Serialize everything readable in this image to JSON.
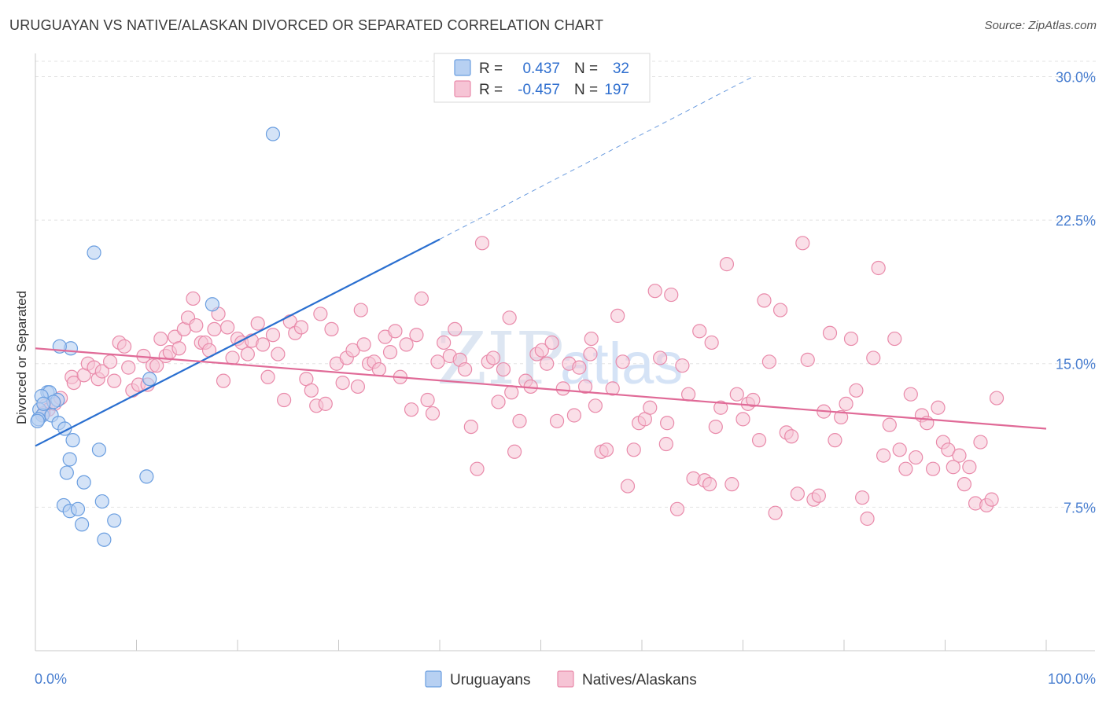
{
  "header": {
    "title": "URUGUAYAN VS NATIVE/ALASKAN DIVORCED OR SEPARATED CORRELATION CHART",
    "source": "Source: ZipAtlas.com"
  },
  "watermark": {
    "zip": "ZIP",
    "atlas": "atlas"
  },
  "colors": {
    "blue": "#6a9ee0",
    "blue_fill": "#b7d0f2",
    "blue_line": "#2a6fd0",
    "pink": "#e98aaa",
    "pink_fill": "#f6c4d5",
    "pink_line": "#e06a97",
    "axis_text": "#4a7fd0",
    "grid": "#e3e3e3"
  },
  "legend": {
    "rows": [
      {
        "r_label": "R =",
        "r_value": "0.437",
        "n_label": "N =",
        "n_value": "32"
      },
      {
        "r_label": "R =",
        "r_value": "-0.457",
        "n_label": "N =",
        "n_value": "197"
      }
    ]
  },
  "bottom_legend": [
    "Uruguayans",
    "Natives/Alaskans"
  ],
  "chart_data": {
    "type": "scatter",
    "ylabel": "Divorced or Separated",
    "xlabel": "",
    "xlim": [
      0,
      100
    ],
    "ylim": [
      0,
      30.8
    ],
    "x_tick_labels": [
      "0.0%",
      "100.0%"
    ],
    "y_ticks": [
      7.5,
      15.0,
      22.5,
      30.0
    ],
    "y_tick_labels": [
      "7.5%",
      "15.0%",
      "22.5%",
      "30.0%"
    ],
    "grid": true,
    "legend_position": "top-center",
    "series": [
      {
        "name": "Uruguayans",
        "r": 0.437,
        "n": 32,
        "trend": {
          "x0": 0,
          "y0": 10.7,
          "x1": 40.0,
          "y1": 21.5,
          "dash_to_x": 71.0,
          "dash_to_y": 30.0
        },
        "points": [
          [
            23.5,
            27.0
          ],
          [
            5.8,
            20.8
          ],
          [
            11.0,
            9.1
          ],
          [
            3.5,
            15.8
          ],
          [
            2.4,
            15.9
          ],
          [
            17.5,
            18.1
          ],
          [
            11.3,
            14.2
          ],
          [
            1.2,
            13.5
          ],
          [
            1.4,
            13.5
          ],
          [
            2.2,
            13.1
          ],
          [
            1.8,
            13.0
          ],
          [
            0.6,
            13.3
          ],
          [
            0.4,
            12.6
          ],
          [
            0.7,
            12.3
          ],
          [
            1.6,
            12.3
          ],
          [
            0.3,
            12.1
          ],
          [
            0.8,
            12.9
          ],
          [
            2.3,
            11.9
          ],
          [
            2.9,
            11.6
          ],
          [
            3.7,
            11.0
          ],
          [
            6.3,
            10.5
          ],
          [
            3.4,
            10.0
          ],
          [
            3.1,
            9.3
          ],
          [
            4.8,
            8.8
          ],
          [
            6.6,
            7.8
          ],
          [
            2.8,
            7.6
          ],
          [
            3.4,
            7.3
          ],
          [
            4.2,
            7.4
          ],
          [
            7.8,
            6.8
          ],
          [
            4.6,
            6.6
          ],
          [
            6.8,
            5.8
          ],
          [
            0.2,
            12.0
          ]
        ]
      },
      {
        "name": "Natives/Alaskans",
        "r": -0.457,
        "n": 197,
        "trend": {
          "x0": 0,
          "y0": 15.8,
          "x1": 100,
          "y1": 11.6
        },
        "points": [
          [
            1.0,
            12.8
          ],
          [
            1.3,
            12.6
          ],
          [
            1.9,
            12.9
          ],
          [
            2.5,
            13.2
          ],
          [
            0.8,
            12.4
          ],
          [
            3.6,
            14.3
          ],
          [
            3.8,
            14.0
          ],
          [
            4.8,
            14.4
          ],
          [
            5.2,
            15.0
          ],
          [
            5.8,
            14.8
          ],
          [
            6.2,
            14.2
          ],
          [
            6.6,
            14.6
          ],
          [
            7.4,
            15.1
          ],
          [
            7.8,
            14.1
          ],
          [
            8.3,
            16.1
          ],
          [
            8.8,
            15.9
          ],
          [
            9.2,
            14.8
          ],
          [
            9.6,
            13.6
          ],
          [
            10.2,
            13.9
          ],
          [
            10.7,
            15.4
          ],
          [
            11.1,
            13.9
          ],
          [
            11.6,
            14.9
          ],
          [
            12.0,
            14.9
          ],
          [
            12.4,
            16.3
          ],
          [
            12.9,
            15.4
          ],
          [
            13.3,
            15.6
          ],
          [
            13.8,
            16.4
          ],
          [
            14.2,
            15.8
          ],
          [
            14.7,
            16.8
          ],
          [
            15.1,
            17.4
          ],
          [
            15.6,
            18.4
          ],
          [
            15.9,
            17.0
          ],
          [
            16.4,
            16.1
          ],
          [
            16.8,
            16.1
          ],
          [
            17.2,
            15.7
          ],
          [
            17.7,
            16.8
          ],
          [
            18.1,
            17.6
          ],
          [
            18.6,
            14.1
          ],
          [
            19.0,
            16.9
          ],
          [
            19.5,
            15.3
          ],
          [
            20.0,
            16.3
          ],
          [
            20.4,
            16.1
          ],
          [
            21.0,
            15.5
          ],
          [
            21.4,
            16.2
          ],
          [
            22.0,
            17.1
          ],
          [
            22.5,
            16.0
          ],
          [
            23.0,
            14.3
          ],
          [
            23.5,
            16.5
          ],
          [
            24.0,
            15.5
          ],
          [
            24.6,
            13.1
          ],
          [
            25.2,
            17.2
          ],
          [
            25.7,
            16.6
          ],
          [
            26.3,
            16.9
          ],
          [
            26.8,
            14.2
          ],
          [
            27.3,
            13.6
          ],
          [
            27.8,
            12.8
          ],
          [
            28.2,
            17.6
          ],
          [
            28.7,
            12.9
          ],
          [
            29.3,
            16.8
          ],
          [
            29.8,
            15.0
          ],
          [
            30.4,
            14.0
          ],
          [
            30.8,
            15.3
          ],
          [
            31.4,
            15.7
          ],
          [
            31.9,
            13.8
          ],
          [
            32.5,
            16.0
          ],
          [
            33.0,
            15.0
          ],
          [
            33.5,
            15.1
          ],
          [
            34.0,
            14.7
          ],
          [
            34.6,
            16.4
          ],
          [
            35.1,
            15.6
          ],
          [
            35.6,
            16.7
          ],
          [
            36.1,
            14.3
          ],
          [
            36.7,
            16.0
          ],
          [
            37.2,
            12.6
          ],
          [
            37.7,
            16.5
          ],
          [
            38.2,
            18.4
          ],
          [
            38.8,
            13.1
          ],
          [
            39.3,
            12.4
          ],
          [
            39.8,
            15.1
          ],
          [
            40.4,
            16.1
          ],
          [
            41.0,
            15.4
          ],
          [
            41.5,
            16.8
          ],
          [
            42.0,
            15.2
          ],
          [
            42.5,
            14.7
          ],
          [
            43.1,
            11.7
          ],
          [
            43.7,
            9.5
          ],
          [
            44.2,
            21.3
          ],
          [
            44.8,
            15.1
          ],
          [
            45.3,
            15.3
          ],
          [
            45.8,
            13.0
          ],
          [
            46.3,
            14.7
          ],
          [
            46.9,
            17.4
          ],
          [
            47.4,
            10.4
          ],
          [
            47.9,
            12.0
          ],
          [
            48.5,
            14.1
          ],
          [
            49.0,
            13.8
          ],
          [
            49.6,
            15.5
          ],
          [
            50.1,
            15.7
          ],
          [
            50.6,
            15.0
          ],
          [
            51.1,
            16.1
          ],
          [
            51.6,
            12.0
          ],
          [
            52.2,
            13.7
          ],
          [
            52.8,
            15.0
          ],
          [
            53.3,
            12.3
          ],
          [
            53.8,
            14.8
          ],
          [
            54.4,
            13.8
          ],
          [
            54.9,
            15.5
          ],
          [
            55.4,
            12.8
          ],
          [
            56.0,
            10.4
          ],
          [
            56.5,
            10.5
          ],
          [
            57.1,
            13.7
          ],
          [
            57.6,
            17.5
          ],
          [
            58.1,
            15.1
          ],
          [
            58.6,
            8.6
          ],
          [
            59.2,
            10.5
          ],
          [
            59.7,
            11.9
          ],
          [
            60.3,
            12.1
          ],
          [
            60.8,
            12.7
          ],
          [
            61.3,
            18.8
          ],
          [
            61.8,
            15.3
          ],
          [
            62.4,
            10.8
          ],
          [
            62.9,
            18.6
          ],
          [
            63.5,
            7.4
          ],
          [
            64.0,
            14.9
          ],
          [
            64.6,
            13.4
          ],
          [
            65.1,
            9.0
          ],
          [
            65.7,
            16.7
          ],
          [
            66.2,
            8.9
          ],
          [
            66.7,
            8.7
          ],
          [
            67.3,
            11.7
          ],
          [
            67.8,
            12.7
          ],
          [
            68.4,
            20.2
          ],
          [
            68.9,
            8.7
          ],
          [
            69.4,
            13.4
          ],
          [
            70.0,
            12.1
          ],
          [
            70.5,
            12.9
          ],
          [
            71.0,
            13.1
          ],
          [
            71.6,
            11.0
          ],
          [
            72.1,
            18.3
          ],
          [
            72.6,
            15.1
          ],
          [
            73.2,
            7.2
          ],
          [
            73.7,
            17.8
          ],
          [
            74.3,
            11.4
          ],
          [
            74.8,
            11.2
          ],
          [
            75.4,
            8.2
          ],
          [
            75.9,
            21.3
          ],
          [
            76.4,
            15.2
          ],
          [
            77.0,
            7.9
          ],
          [
            77.5,
            8.1
          ],
          [
            78.0,
            12.5
          ],
          [
            78.6,
            16.6
          ],
          [
            79.1,
            11.0
          ],
          [
            79.7,
            12.2
          ],
          [
            80.2,
            12.9
          ],
          [
            80.7,
            16.3
          ],
          [
            81.2,
            13.6
          ],
          [
            81.8,
            8.0
          ],
          [
            82.3,
            6.9
          ],
          [
            82.9,
            15.3
          ],
          [
            83.4,
            20.0
          ],
          [
            83.9,
            10.2
          ],
          [
            84.5,
            11.8
          ],
          [
            85.0,
            16.3
          ],
          [
            85.5,
            10.5
          ],
          [
            86.1,
            9.5
          ],
          [
            86.6,
            13.4
          ],
          [
            87.1,
            10.1
          ],
          [
            87.7,
            12.3
          ],
          [
            88.2,
            11.9
          ],
          [
            88.8,
            9.5
          ],
          [
            89.3,
            12.7
          ],
          [
            89.8,
            10.9
          ],
          [
            90.3,
            10.5
          ],
          [
            90.8,
            9.6
          ],
          [
            91.4,
            10.2
          ],
          [
            91.9,
            8.7
          ],
          [
            92.4,
            9.6
          ],
          [
            93.0,
            7.7
          ],
          [
            93.5,
            10.9
          ],
          [
            94.1,
            7.6
          ],
          [
            94.6,
            7.9
          ],
          [
            95.1,
            13.2
          ],
          [
            55.0,
            16.3
          ],
          [
            66.9,
            16.1
          ],
          [
            32.2,
            17.8
          ],
          [
            47.1,
            13.5
          ],
          [
            62.5,
            11.9
          ]
        ]
      }
    ]
  }
}
